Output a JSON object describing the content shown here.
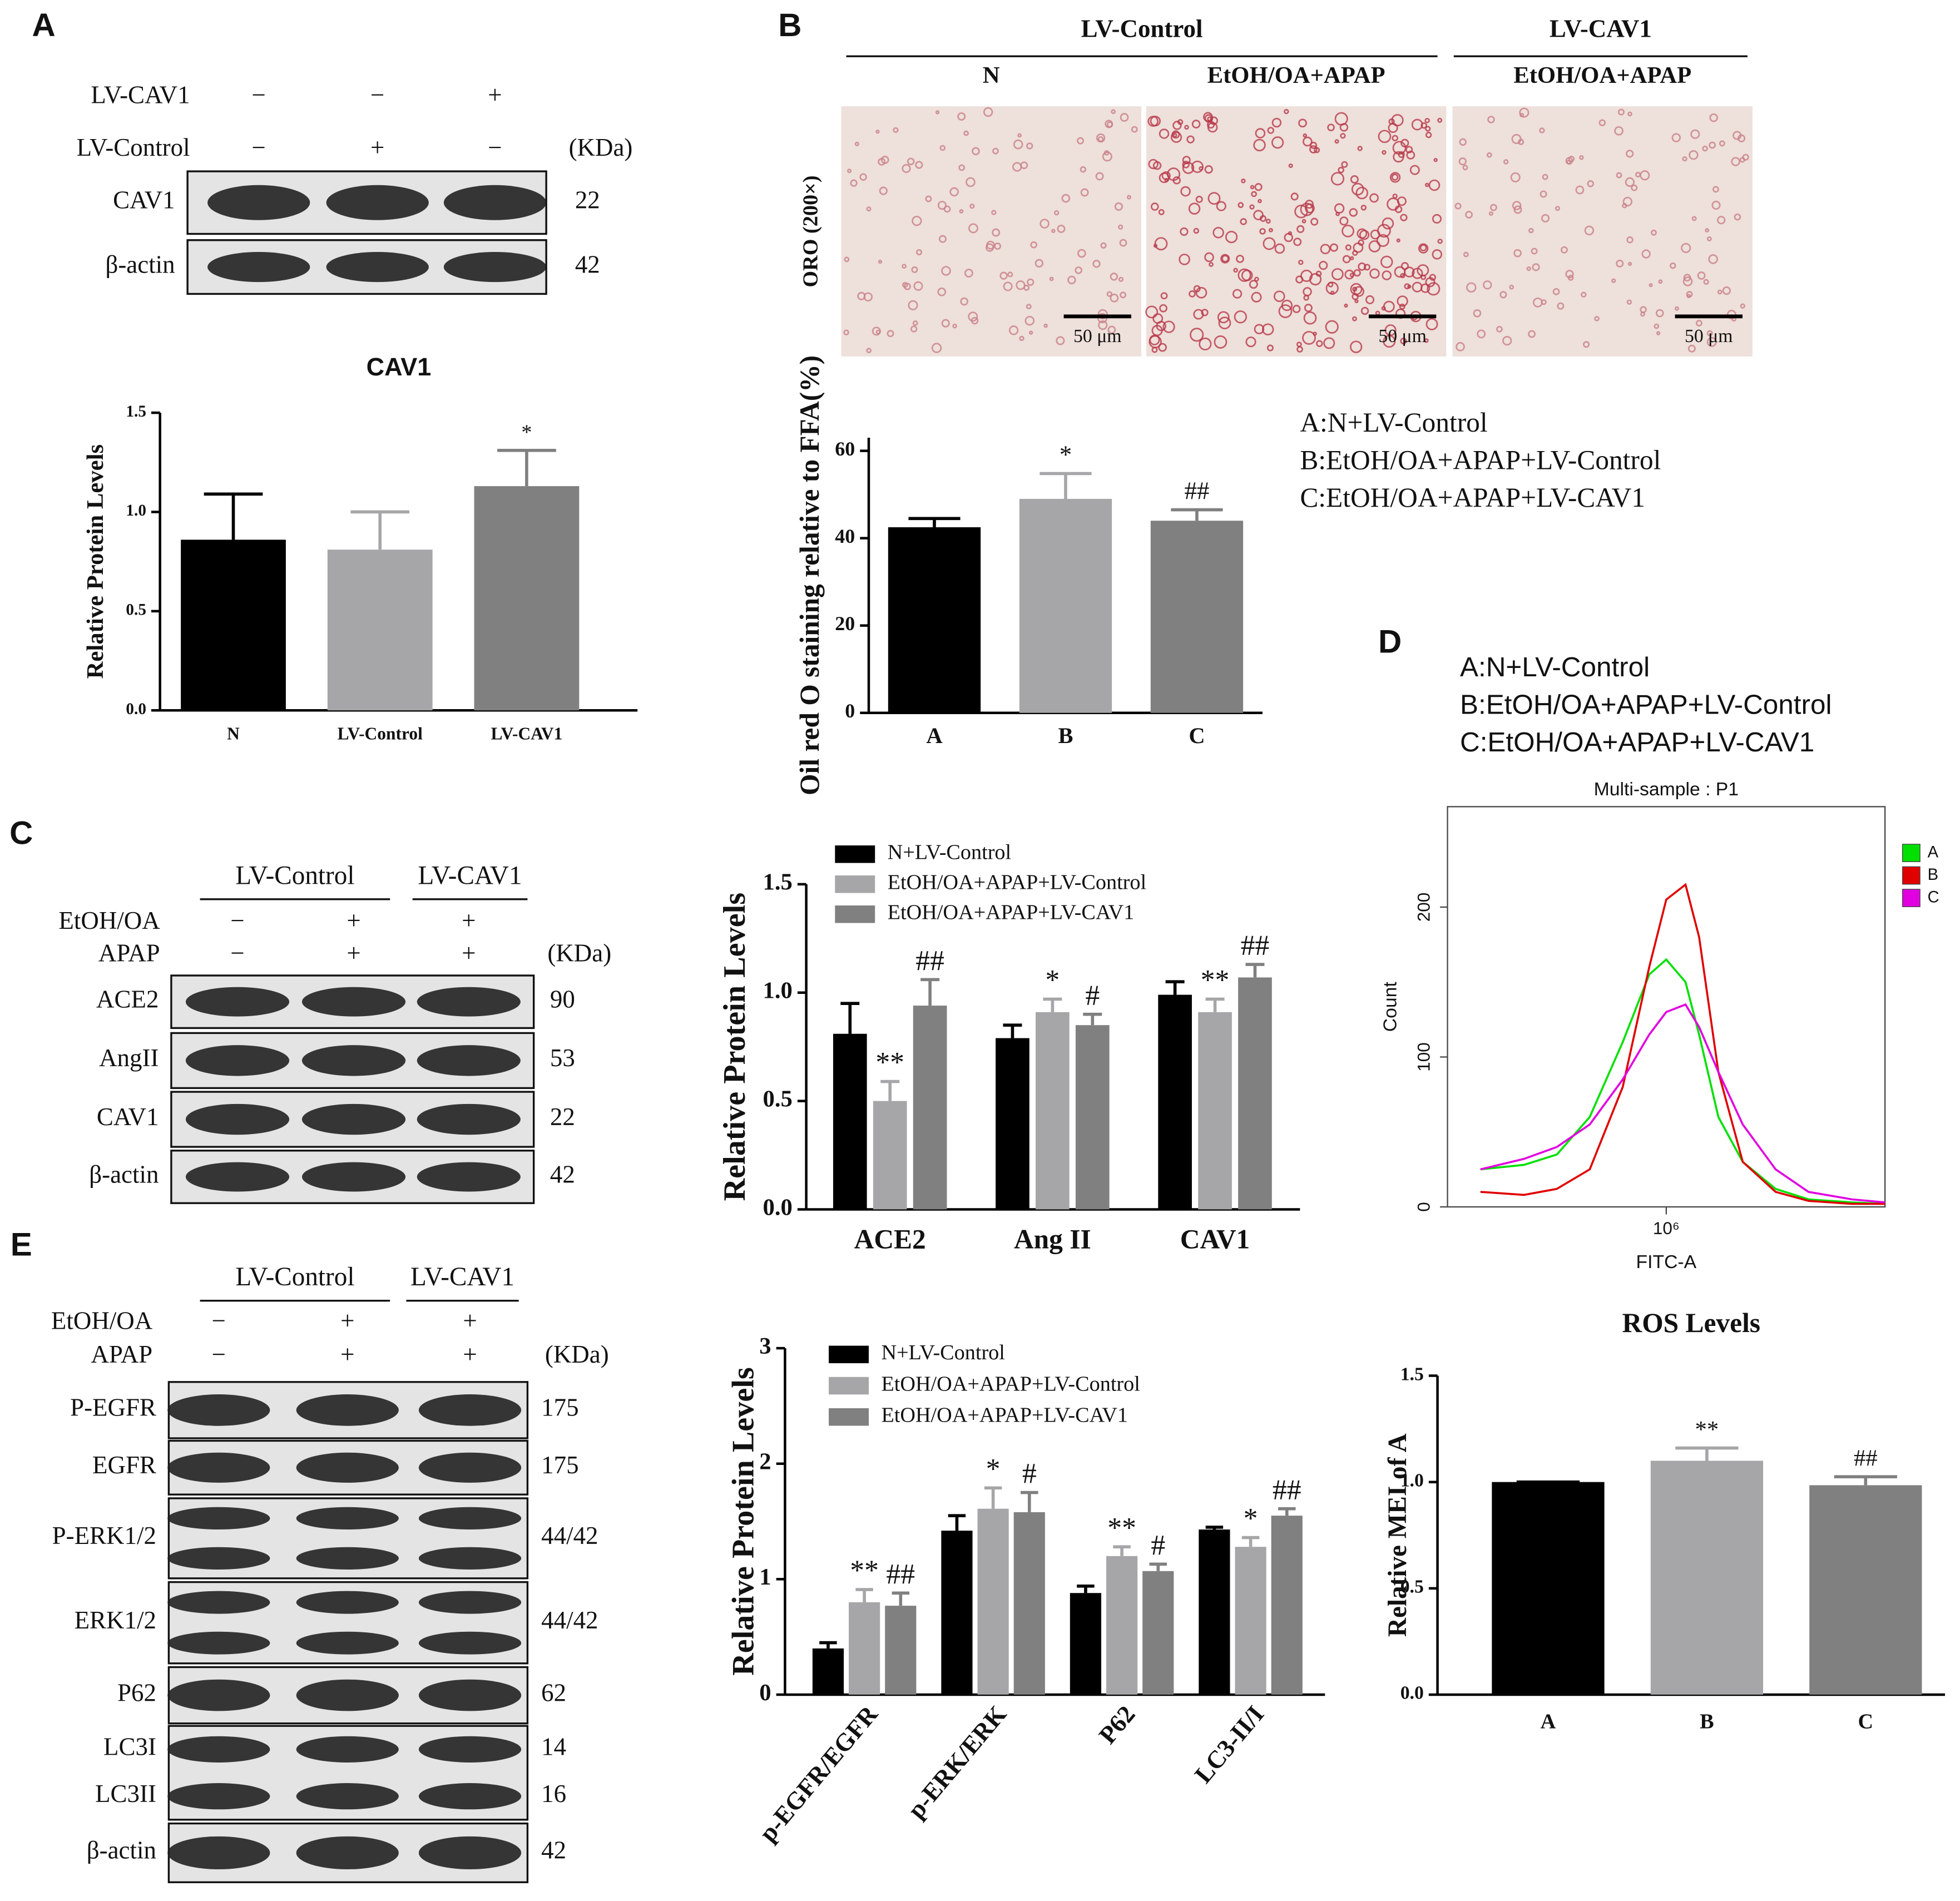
{
  "panels": [
    "A",
    "B",
    "C",
    "D",
    "E"
  ],
  "blot_a": {
    "rows": [
      {
        "label": "LV-CAV1",
        "marks": [
          "−",
          "−",
          "+"
        ]
      },
      {
        "label": "LV-Control",
        "marks": [
          "−",
          "+",
          "−"
        ]
      }
    ],
    "unit": "(KDa)",
    "bands": [
      {
        "labels": [
          "CAV1"
        ],
        "kda": [
          "22"
        ]
      },
      {
        "labels": [
          "β-actin"
        ],
        "kda": [
          "42"
        ]
      }
    ]
  },
  "images_b": {
    "groups": [
      "LV-Control",
      "LV-CAV1"
    ],
    "conditions": [
      "N",
      "EtOH/OA+APAP",
      "EtOH/OA+APAP"
    ],
    "stain": "ORO (200×)",
    "scale_bars": [
      "50 μm",
      "50 μm",
      "50 μm"
    ]
  },
  "blot_c": {
    "groups": [
      "LV-Control",
      "LV-CAV1"
    ],
    "rows": [
      {
        "label": "EtOH/OA",
        "marks": [
          "−",
          "+",
          "+"
        ]
      },
      {
        "label": "APAP",
        "marks": [
          "−",
          "+",
          "+"
        ]
      }
    ],
    "unit": "(KDa)",
    "bands": [
      {
        "labels": [
          "ACE2"
        ],
        "kda": [
          "90"
        ]
      },
      {
        "labels": [
          "AngII"
        ],
        "kda": [
          "53"
        ]
      },
      {
        "labels": [
          "CAV1"
        ],
        "kda": [
          "22"
        ]
      },
      {
        "labels": [
          "β-actin"
        ],
        "kda": [
          "42"
        ]
      }
    ]
  },
  "blot_e": {
    "groups": [
      "LV-Control",
      "LV-CAV1"
    ],
    "rows": [
      {
        "label": "EtOH/OA",
        "marks": [
          "−",
          "+",
          "+"
        ]
      },
      {
        "label": "APAP",
        "marks": [
          "−",
          "+",
          "+"
        ]
      }
    ],
    "unit": "(KDa)",
    "bands": [
      {
        "labels": [
          "P-EGFR"
        ],
        "kda": [
          "175"
        ]
      },
      {
        "labels": [
          "EGFR"
        ],
        "kda": [
          "175"
        ]
      },
      {
        "labels": [
          "P-ERK1/2"
        ],
        "kda": [
          "44/42"
        ]
      },
      {
        "labels": [
          "ERK1/2"
        ],
        "kda": [
          "44/42"
        ]
      },
      {
        "labels": [
          "P62"
        ],
        "kda": [
          "62"
        ]
      },
      {
        "labels": [
          "LC3I",
          "LC3II"
        ],
        "kda": [
          "14",
          "16"
        ]
      },
      {
        "labels": [
          "β-actin"
        ],
        "kda": [
          "42"
        ]
      }
    ]
  },
  "chart_data": [
    {
      "type": "bar",
      "title": "CAV1",
      "y_label": "Relative Protein Levels",
      "categories": [
        "N",
        "LV-Control",
        "LV-CAV1"
      ],
      "values": [
        0.86,
        0.81,
        1.13
      ],
      "errors": [
        0.23,
        0.19,
        0.18
      ],
      "annotations": [
        null,
        null,
        "*"
      ],
      "colors": [
        "#000000",
        "#a6a6a8",
        "#808080"
      ],
      "ylim": [
        0,
        1.5
      ],
      "yticks": [
        {
          "value": 0,
          "label": "0.0"
        },
        {
          "value": 0.5,
          "label": "0.5"
        },
        {
          "value": 1,
          "label": "1.0"
        },
        {
          "value": 1.5,
          "label": "1.5"
        }
      ]
    },
    {
      "type": "bar",
      "y_label": "Oil red O staining relative to FFA(%)",
      "categories": [
        "A",
        "B",
        "C"
      ],
      "values": [
        42.5,
        49,
        44
      ],
      "errors": [
        2,
        5.8,
        2.5
      ],
      "annotations": [
        null,
        "*",
        "##"
      ],
      "colors": [
        "#000000",
        "#a6a6a8",
        "#808080"
      ],
      "ylim": [
        0,
        63
      ],
      "yticks": [
        0,
        20,
        40,
        60
      ],
      "key": [
        "A:N+LV-Control",
        "B:EtOH/OA+APAP+LV-Control",
        "C:EtOH/OA+APAP+LV-CAV1"
      ]
    },
    {
      "type": "bar",
      "y_label": "Relative Protein Levels",
      "categories": [
        "ACE2",
        "Ang II",
        "CAV1"
      ],
      "legend": "top-left",
      "series": [
        {
          "name": "N+LV-Control",
          "color": "#000000",
          "values": [
            0.81,
            0.79,
            0.99
          ],
          "errors": [
            0.14,
            0.06,
            0.06
          ],
          "annotations": [
            null,
            null,
            null
          ]
        },
        {
          "name": "EtOH/OA+APAP+LV-Control",
          "color": "#a6a6a8",
          "values": [
            0.5,
            0.91,
            0.91
          ],
          "errors": [
            0.09,
            0.06,
            0.06
          ],
          "annotations": [
            "**",
            "*",
            "**"
          ]
        },
        {
          "name": "EtOH/OA+APAP+LV-CAV1",
          "color": "#808080",
          "values": [
            0.94,
            0.85,
            1.07
          ],
          "errors": [
            0.12,
            0.05,
            0.06
          ],
          "annotations": [
            "##",
            "#",
            "##"
          ]
        }
      ],
      "ylim": [
        0,
        1.5
      ],
      "yticks": [
        {
          "value": 0,
          "label": "0.0"
        },
        {
          "value": 0.5,
          "label": "0.5"
        },
        {
          "value": 1,
          "label": "1.0"
        },
        {
          "value": 1.5,
          "label": "1.5"
        }
      ]
    },
    {
      "type": "line",
      "title": "Multi-sample : P1",
      "x_label": "FITC-A",
      "y_label": "Count",
      "xscale": "log",
      "legend": "right",
      "key": [
        "A:N+LV-Control",
        "B:EtOH/OA+APAP+LV-Control",
        "C:EtOH/OA+APAP+LV-CAV1"
      ],
      "x": [
        20000,
        50000,
        100000,
        200000,
        400000,
        700000,
        1000000,
        1500000,
        2000000,
        3000000,
        5000000,
        10000000,
        20000000,
        50000000,
        100000000
      ],
      "series": [
        {
          "name": "A",
          "color": "#00e000",
          "values": [
            25,
            28,
            35,
            60,
            110,
            155,
            165,
            150,
            115,
            60,
            30,
            12,
            5,
            3,
            2
          ]
        },
        {
          "name": "B",
          "color": "#e00000",
          "values": [
            10,
            8,
            12,
            25,
            80,
            160,
            205,
            215,
            180,
            90,
            30,
            10,
            4,
            2,
            2
          ]
        },
        {
          "name": "C",
          "color": "#e000e0",
          "values": [
            25,
            32,
            40,
            55,
            85,
            115,
            130,
            135,
            120,
            90,
            55,
            25,
            10,
            5,
            3
          ]
        }
      ],
      "xlim": [
        10000,
        100000000
      ],
      "xticks": [
        {
          "value": 1000000,
          "label": "10⁶"
        }
      ],
      "ylim": [
        0,
        267
      ],
      "yticks": [
        0,
        100,
        200
      ]
    },
    {
      "type": "bar",
      "title": "ROS Levels",
      "y_label": "Relative MEI of A",
      "categories": [
        "A",
        "B",
        "C"
      ],
      "values": [
        1,
        1.1,
        0.985
      ],
      "errors": [
        0,
        0.06,
        0.04
      ],
      "annotations": [
        null,
        "**",
        "##"
      ],
      "colors": [
        "#000000",
        "#a6a6a8",
        "#808080"
      ],
      "ylim": [
        0,
        1.5
      ],
      "yticks": [
        {
          "value": 0,
          "label": "0.0"
        },
        {
          "value": 0.5,
          "label": "0.5"
        },
        {
          "value": 1,
          "label": "1.0"
        },
        {
          "value": 1.5,
          "label": "1.5"
        }
      ]
    },
    {
      "type": "bar",
      "y_label": "Relative Protein Levels",
      "categories": [
        "p-EGFR/EGFR",
        "p-ERK/ERK",
        "P62",
        "LC3-II/I"
      ],
      "legend": "top-left",
      "series": [
        {
          "name": "N+LV-Control",
          "color": "#000000",
          "values": [
            0.4,
            1.42,
            0.88,
            1.43
          ],
          "errors": [
            0.05,
            0.13,
            0.06,
            0.02
          ],
          "annotations": [
            null,
            null,
            null,
            null
          ]
        },
        {
          "name": "EtOH/OA+APAP+LV-Control",
          "color": "#a6a6a8",
          "values": [
            0.8,
            1.61,
            1.2,
            1.28
          ],
          "errors": [
            0.11,
            0.18,
            0.08,
            0.08
          ],
          "annotations": [
            "**",
            "*",
            "**",
            "*"
          ]
        },
        {
          "name": "EtOH/OA+APAP+LV-CAV1",
          "color": "#808080",
          "values": [
            0.77,
            1.58,
            1.07,
            1.55
          ],
          "errors": [
            0.11,
            0.17,
            0.06,
            0.06
          ],
          "annotations": [
            "##",
            "#",
            "#",
            "##"
          ]
        }
      ],
      "ylim": [
        0,
        3
      ],
      "yticks": [
        0,
        1,
        2,
        3
      ]
    }
  ]
}
